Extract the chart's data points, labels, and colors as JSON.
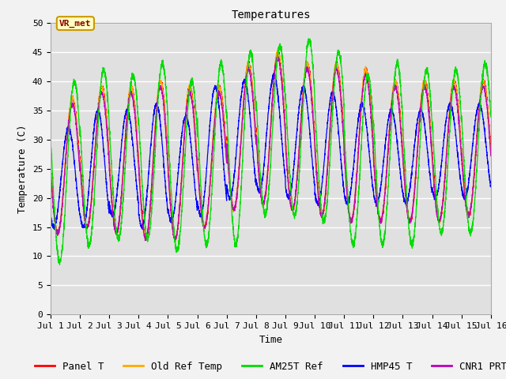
{
  "title": "Temperatures",
  "xlabel": "Time",
  "ylabel": "Temperature (C)",
  "xlim": [
    0,
    15
  ],
  "ylim": [
    0,
    50
  ],
  "yticks": [
    0,
    5,
    10,
    15,
    20,
    25,
    30,
    35,
    40,
    45,
    50
  ],
  "xtick_labels": [
    "Jul 1",
    "Jul 2",
    "Jul 3",
    "Jul 4",
    "Jul 5",
    "Jul 6",
    "Jul 7",
    "Jul 8",
    "Jul 9",
    "Jul 10",
    "Jul 11",
    "Jul 12",
    "Jul 13",
    "Jul 14",
    "Jul 15",
    "Jul 16"
  ],
  "annotation_text": "VR_met",
  "series": [
    {
      "label": "Panel T",
      "color": "#ff0000"
    },
    {
      "label": "Old Ref Temp",
      "color": "#ffaa00"
    },
    {
      "label": "AM25T Ref",
      "color": "#00dd00"
    },
    {
      "label": "HMP45 T",
      "color": "#0000ff"
    },
    {
      "label": "CNR1 PRT",
      "color": "#bb00bb"
    }
  ],
  "fig_bg_color": "#f2f2f2",
  "plot_bg_color": "#e0e0e0",
  "grid_color": "#ffffff",
  "title_fontsize": 10,
  "label_fontsize": 9,
  "tick_fontsize": 8,
  "legend_fontsize": 9
}
